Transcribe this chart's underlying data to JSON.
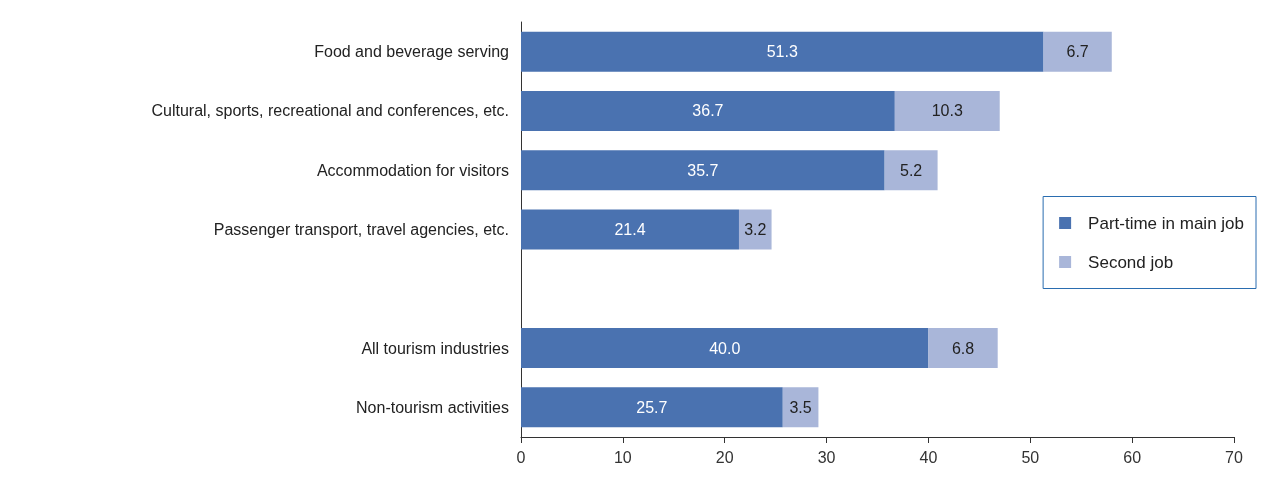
{
  "chart_data": {
    "type": "bar",
    "orientation": "horizontal",
    "stacked": true,
    "categories": [
      "Food and beverage serving",
      "Cultural, sports, recreational and conferences, etc.",
      "Accommodation for visitors",
      "Passenger transport, travel agencies, etc.",
      null,
      "All tourism industries",
      "Non-tourism activities"
    ],
    "series": [
      {
        "name": "Part-time in main job",
        "color": "#4a72b0",
        "values": [
          51.3,
          36.7,
          35.7,
          21.4,
          null,
          40.0,
          25.7
        ],
        "value_labels": [
          "51.3",
          "36.7",
          "35.7",
          "21.4",
          null,
          "40.0",
          "25.7"
        ]
      },
      {
        "name": "Second job",
        "color": "#a9b6d9",
        "values": [
          6.7,
          10.3,
          5.2,
          3.2,
          null,
          6.8,
          3.5
        ],
        "value_labels": [
          "6.7",
          "10.3",
          "5.2",
          "3.2",
          null,
          "6.8",
          "3.5"
        ]
      }
    ],
    "xlim": [
      0,
      70
    ],
    "xticks": [
      0,
      10,
      20,
      30,
      40,
      50,
      60,
      70
    ],
    "grid": false,
    "legend": "right"
  }
}
